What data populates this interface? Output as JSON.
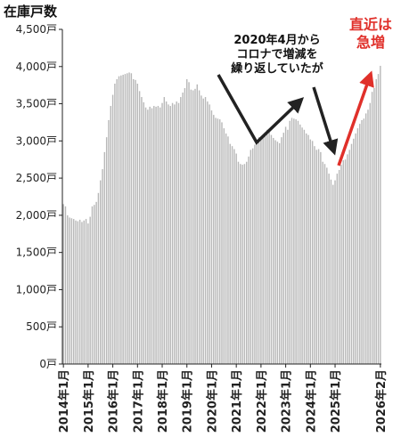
{
  "chart_data": {
    "type": "bar",
    "ylabel": "在庫戸数",
    "ylim": [
      0,
      4500
    ],
    "y_ticks": [
      "0戸",
      "500戸",
      "1,000戸",
      "1,500戸",
      "2,000戸",
      "2,500戸",
      "3,000戸",
      "3,500戸",
      "4,000戸",
      "4,500戸"
    ],
    "x_tick_labels": [
      "2014年1月",
      "2015年1月",
      "2016年1月",
      "2017年1月",
      "2018年1月",
      "2019年1月",
      "2020年1月",
      "2021年1月",
      "2022年1月",
      "2023年1月",
      "2024年1月",
      "2025年1月",
      "2026年2月"
    ],
    "values": [
      2150,
      2120,
      2000,
      1970,
      1960,
      1950,
      1930,
      1920,
      1940,
      1910,
      1930,
      1950,
      1890,
      1980,
      2120,
      2140,
      2180,
      2300,
      2470,
      2620,
      2850,
      3050,
      3280,
      3470,
      3620,
      3770,
      3830,
      3870,
      3880,
      3890,
      3900,
      3910,
      3920,
      3910,
      3830,
      3820,
      3770,
      3670,
      3590,
      3520,
      3450,
      3420,
      3460,
      3440,
      3470,
      3460,
      3470,
      3450,
      3510,
      3590,
      3530,
      3490,
      3470,
      3510,
      3490,
      3530,
      3510,
      3590,
      3650,
      3710,
      3830,
      3790,
      3690,
      3680,
      3700,
      3760,
      3680,
      3610,
      3570,
      3590,
      3530,
      3490,
      3410,
      3350,
      3310,
      3300,
      3290,
      3250,
      3170,
      3100,
      3060,
      2960,
      2930,
      2890,
      2830,
      2720,
      2690,
      2680,
      2690,
      2720,
      2790,
      2880,
      2900,
      2950,
      2980,
      3050,
      3040,
      3060,
      3110,
      3150,
      3130,
      3080,
      3040,
      3010,
      2990,
      2970,
      3050,
      3110,
      3190,
      3150,
      3270,
      3310,
      3300,
      3290,
      3270,
      3220,
      3180,
      3150,
      3100,
      3080,
      3020,
      3000,
      2930,
      2880,
      2890,
      2850,
      2720,
      2690,
      2640,
      2560,
      2480,
      2410,
      2470,
      2560,
      2610,
      2680,
      2740,
      2750,
      2820,
      2880,
      2960,
      3030,
      3100,
      3170,
      3230,
      3280,
      3300,
      3370,
      3420,
      3510,
      3660,
      3710,
      3830,
      3900,
      4010
    ],
    "annotations": [
      {
        "text": "2020年4月から\nコロナで増減を\n繰り返していたが",
        "color": "#111111"
      },
      {
        "text": "直近は\n急増",
        "color": "#e0302a"
      }
    ],
    "bar_color": "#b8b8b8",
    "grid": false
  }
}
